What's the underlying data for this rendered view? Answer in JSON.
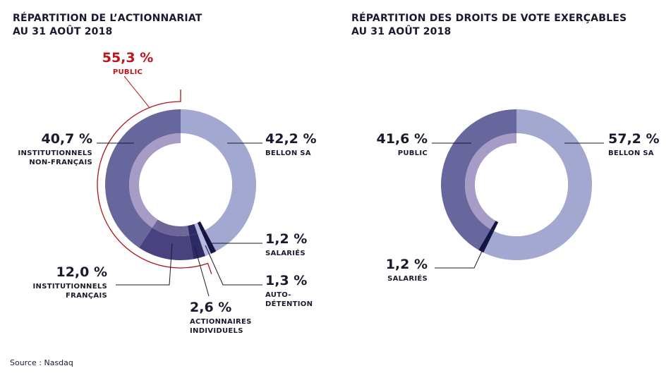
{
  "source": "Source : Nasdaq",
  "colors": {
    "bellon": "#a2a8cf",
    "bellon_inner": "#ffffff",
    "inst_nonfr": "#67669d",
    "inst_nonfr_inner": "#a69cc6",
    "inst_fr": "#4a427e",
    "inst_fr_inner": "#6d6699",
    "individuels": "#2e2a66",
    "autodetention": "#b6b9dd",
    "salaries": "#151445",
    "public_bracket": "#b01218",
    "leader": "#1a1a2e"
  },
  "chart_data": [
    {
      "type": "pie",
      "subtype": "donut",
      "title_line1": "RÉPARTITION DE L’ACTIONNARIAT",
      "title_line2": "AU 31 AOÛT 2018",
      "slices": [
        {
          "name": "BELLON SA",
          "value": 42.2,
          "label_value": "42,2 %",
          "label_lines": [
            "BELLON SA"
          ]
        },
        {
          "name": "SALARIÉS",
          "value": 1.2,
          "label_value": "1,2 %",
          "label_lines": [
            "SALARIÉS"
          ]
        },
        {
          "name": "AUTO-DÉTENTION",
          "value": 1.3,
          "label_value": "1,3 %",
          "label_lines": [
            "AUTO-",
            "DÉTENTION"
          ]
        },
        {
          "name": "ACTIONNAIRES INDIVIDUELS",
          "value": 2.6,
          "label_value": "2,6 %",
          "label_lines": [
            "ACTIONNAIRES",
            "INDIVIDUELS"
          ]
        },
        {
          "name": "INSTITUTIONNELS FRANÇAIS",
          "value": 12.0,
          "label_value": "12,0 %",
          "label_lines": [
            "INSTITUTIONNELS",
            "FRANÇAIS"
          ]
        },
        {
          "name": "INSTITUTIONNELS NON-FRANÇAIS",
          "value": 40.7,
          "label_value": "40,7 %",
          "label_lines": [
            "INSTITUTIONNELS",
            "NON-FRANÇAIS"
          ]
        }
      ],
      "group": {
        "name": "PUBLIC",
        "value": 55.3,
        "label_value": "55,3 %",
        "label_lines": [
          "PUBLIC"
        ],
        "members": [
          "ACTIONNAIRES INDIVIDUELS",
          "INSTITUTIONNELS FRANÇAIS",
          "INSTITUTIONNELS NON-FRANÇAIS"
        ]
      }
    },
    {
      "type": "pie",
      "subtype": "donut",
      "title_line1": "RÉPARTITION DES DROITS DE VOTE EXERÇABLES",
      "title_line2": "AU 31 AOÛT 2018",
      "slices": [
        {
          "name": "BELLON SA",
          "value": 57.2,
          "label_value": "57,2 %",
          "label_lines": [
            "BELLON SA"
          ]
        },
        {
          "name": "SALARIÉS",
          "value": 1.2,
          "label_value": "1,2 %",
          "label_lines": [
            "SALARIÉS"
          ]
        },
        {
          "name": "PUBLIC",
          "value": 41.6,
          "label_value": "41,6 %",
          "label_lines": [
            "PUBLIC"
          ]
        }
      ]
    }
  ]
}
